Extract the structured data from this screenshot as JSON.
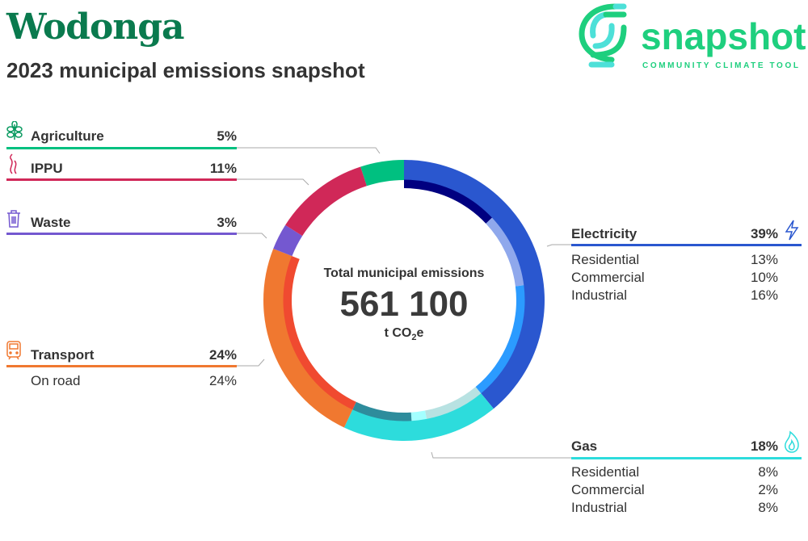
{
  "header": {
    "title": "Wodonga",
    "subtitle": "2023 municipal emissions snapshot"
  },
  "logo": {
    "name": "snapshot",
    "tagline": "COMMUNITY CLIMATE TOOL",
    "color": "#1ecf7e"
  },
  "center": {
    "label": "Total municipal emissions",
    "value": "561 100",
    "unit_prefix": "t CO",
    "unit_sub": "2",
    "unit_suffix": "e"
  },
  "chart_data": {
    "type": "pie",
    "title": "Total municipal emissions",
    "total": 561100,
    "unit": "t CO2e",
    "series": [
      {
        "name": "Electricity",
        "value": 39,
        "label": "39%",
        "color": "#2a57cf",
        "icon": "lightning-icon",
        "subs": [
          {
            "name": "Residential",
            "value": 13,
            "label": "13%",
            "color": "#000080"
          },
          {
            "name": "Commercial",
            "value": 10,
            "label": "10%",
            "color": "#8fa8ec"
          },
          {
            "name": "Industrial",
            "value": 16,
            "label": "16%",
            "color": "#2b9bff"
          }
        ]
      },
      {
        "name": "Gas",
        "value": 18,
        "label": "18%",
        "color": "#2ddcdc",
        "icon": "flame-icon",
        "subs": [
          {
            "name": "Residential",
            "value": 8,
            "label": "8%",
            "color": "#b8e2e2"
          },
          {
            "name": "Commercial",
            "value": 2,
            "label": "2%",
            "color": "#a4ffff"
          },
          {
            "name": "Industrial",
            "value": 8,
            "label": "8%",
            "color": "#2e8c9c"
          }
        ]
      },
      {
        "name": "Transport",
        "value": 24,
        "label": "24%",
        "color": "#f07830",
        "icon": "train-icon",
        "subs": [
          {
            "name": "On road",
            "value": 24,
            "label": "24%",
            "color": "#f04a30"
          }
        ]
      },
      {
        "name": "Waste",
        "value": 3,
        "label": "3%",
        "color": "#7458d0",
        "icon": "bin-icon",
        "subs": []
      },
      {
        "name": "IPPU",
        "value": 11,
        "label": "11%",
        "color": "#d02858",
        "icon": "smoke-icon",
        "subs": []
      },
      {
        "name": "Agriculture",
        "value": 5,
        "label": "5%",
        "color": "#00c080",
        "icon": "wheat-icon",
        "subs": []
      }
    ]
  }
}
